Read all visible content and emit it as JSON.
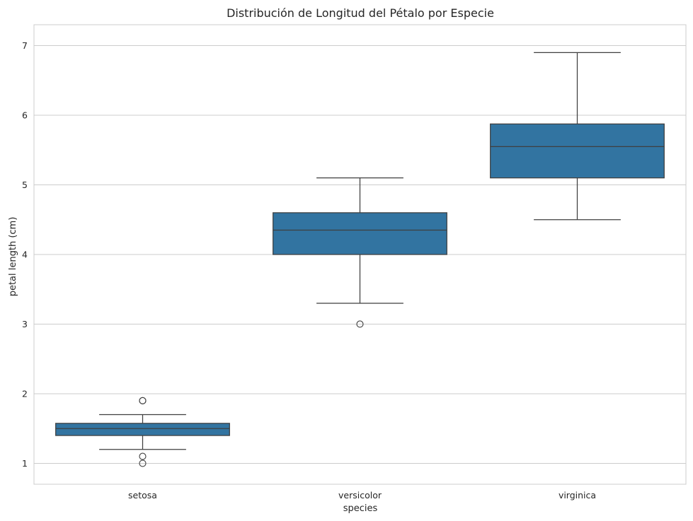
{
  "chart_data": {
    "type": "box",
    "title": "Distribución de Longitud del Pétalo por Especie",
    "xlabel": "species",
    "ylabel": "petal length (cm)",
    "categories": [
      "setosa",
      "versicolor",
      "virginica"
    ],
    "ylim": [
      0.7,
      7.3
    ],
    "yticks": [
      1,
      2,
      3,
      4,
      5,
      6,
      7
    ],
    "grid": true,
    "box_color": "#3274a1",
    "line_color": "#3f3f3f",
    "boxes": [
      {
        "category": "setosa",
        "whisker_low": 1.2,
        "q1": 1.4,
        "median": 1.5,
        "q3": 1.575,
        "whisker_high": 1.7,
        "outliers": [
          1.0,
          1.1,
          1.9,
          1.9
        ]
      },
      {
        "category": "versicolor",
        "whisker_low": 3.3,
        "q1": 4.0,
        "median": 4.35,
        "q3": 4.6,
        "whisker_high": 5.1,
        "outliers": [
          3.0
        ]
      },
      {
        "category": "virginica",
        "whisker_low": 4.5,
        "q1": 5.1,
        "median": 5.55,
        "q3": 5.875,
        "whisker_high": 6.9,
        "outliers": []
      }
    ]
  }
}
